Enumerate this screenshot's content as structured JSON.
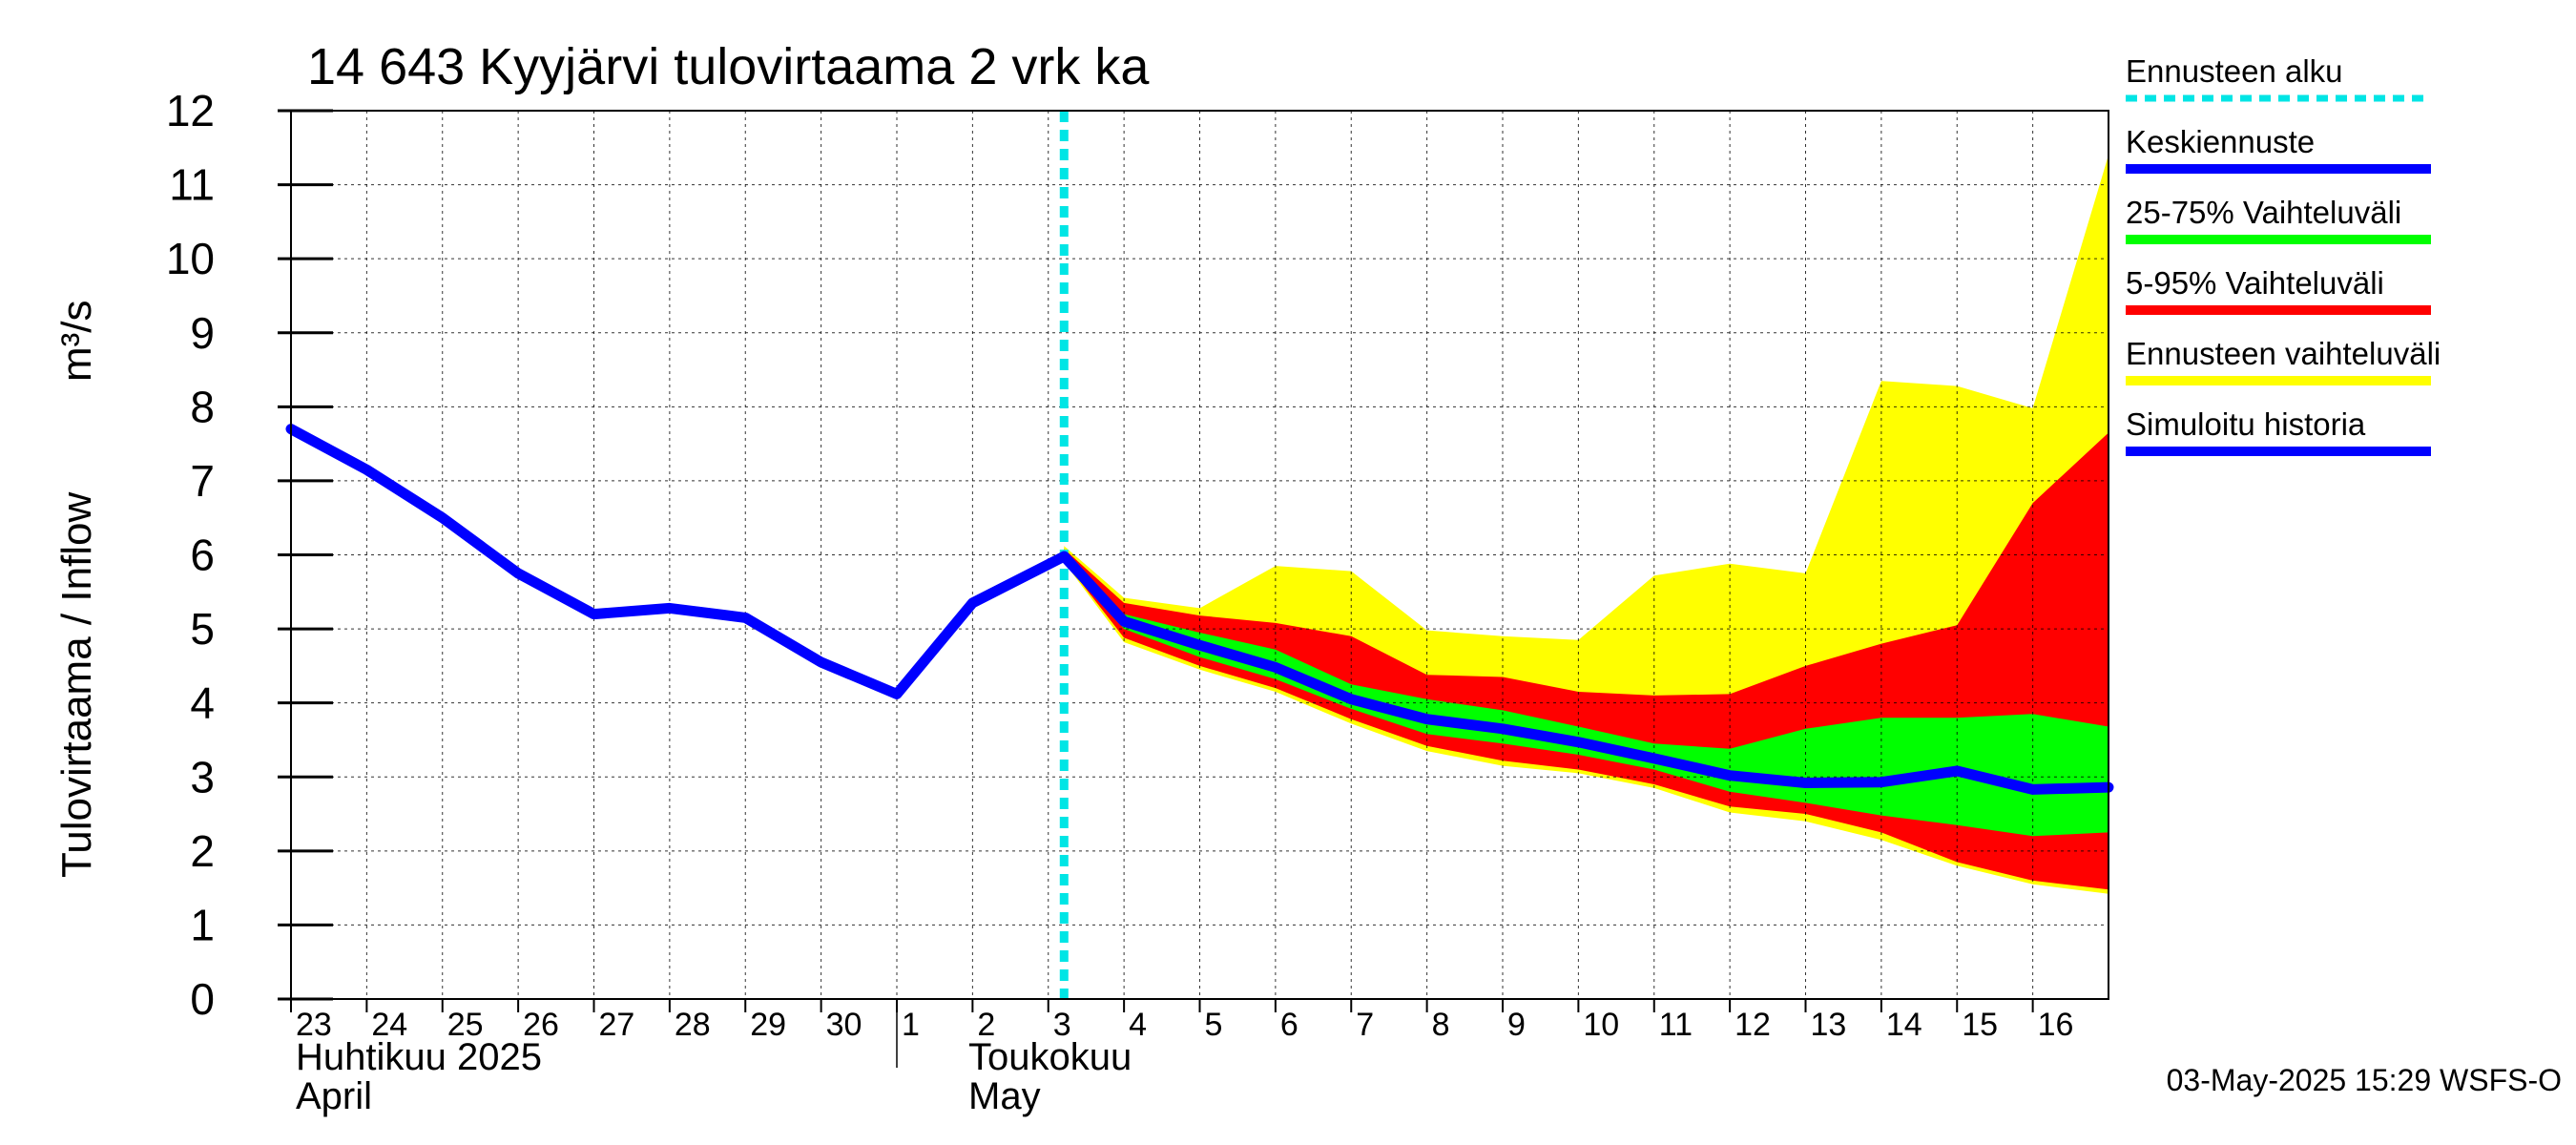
{
  "chart_data": {
    "type": "area",
    "title": "14 643 Kyyjärvi tulovirtaama 2 vrk ka",
    "ylabel": "Tulovirtaama / Inflow",
    "yunit": "m³/s",
    "ylim": [
      0,
      12
    ],
    "yticks": [
      0,
      1,
      2,
      3,
      4,
      5,
      6,
      7,
      8,
      9,
      10,
      11,
      12
    ],
    "grid": true,
    "legend_placement": "right",
    "x_start": "2025-04-23",
    "x_end": "2025-05-17",
    "xtick_labels": [
      "23",
      "24",
      "25",
      "26",
      "27",
      "28",
      "29",
      "30",
      "1",
      "2",
      "3",
      "4",
      "5",
      "6",
      "7",
      "8",
      "9",
      "10",
      "11",
      "12",
      "13",
      "14",
      "15",
      "16"
    ],
    "months": [
      {
        "start": "2025-04-23",
        "fi": "Huhtikuu  2025",
        "en": "April"
      },
      {
        "start": "2025-05-01",
        "fi": "Toukokuu",
        "en": "May"
      }
    ],
    "forecast_start": "2025-05-03T05:00",
    "series": [
      {
        "name": "Simuloitu historia",
        "color": "#0000ff",
        "points": [
          [
            "2025-04-23",
            7.7
          ],
          [
            "2025-04-24",
            7.15
          ],
          [
            "2025-04-25",
            6.5
          ],
          [
            "2025-04-26",
            5.75
          ],
          [
            "2025-04-27",
            5.2
          ],
          [
            "2025-04-28",
            5.28
          ],
          [
            "2025-04-29",
            5.15
          ],
          [
            "2025-04-30",
            4.55
          ],
          [
            "2025-05-01",
            4.12
          ],
          [
            "2025-05-02",
            5.35
          ],
          [
            "2025-05-03T05:00",
            5.98
          ]
        ]
      },
      {
        "name": "Keskiennuste",
        "color": "#0000ff",
        "points": [
          [
            "2025-05-03T05:00",
            5.98
          ],
          [
            "2025-05-04",
            5.1
          ],
          [
            "2025-05-05",
            4.78
          ],
          [
            "2025-05-06",
            4.48
          ],
          [
            "2025-05-07",
            4.05
          ],
          [
            "2025-05-08",
            3.78
          ],
          [
            "2025-05-09",
            3.65
          ],
          [
            "2025-05-10",
            3.47
          ],
          [
            "2025-05-11",
            3.25
          ],
          [
            "2025-05-12",
            3.02
          ],
          [
            "2025-05-13",
            2.92
          ],
          [
            "2025-05-14",
            2.93
          ],
          [
            "2025-05-15",
            3.08
          ],
          [
            "2025-05-16",
            2.83
          ],
          [
            "2025-05-17",
            2.86
          ]
        ]
      },
      {
        "name": "Ennusteen vaihteluväli",
        "color": "#ffff00",
        "x": [
          "2025-05-03T05:00",
          "2025-05-04",
          "2025-05-05",
          "2025-05-06",
          "2025-05-07",
          "2025-05-08",
          "2025-05-09",
          "2025-05-10",
          "2025-05-11",
          "2025-05-12",
          "2025-05-13",
          "2025-05-14",
          "2025-05-15",
          "2025-05-16",
          "2025-05-17"
        ],
        "upper": [
          6.12,
          5.42,
          5.28,
          5.85,
          5.78,
          4.98,
          4.9,
          4.85,
          5.72,
          5.88,
          5.75,
          8.35,
          8.28,
          7.98,
          11.4
        ],
        "lower": [
          5.9,
          4.82,
          4.45,
          4.15,
          3.72,
          3.35,
          3.15,
          3.05,
          2.85,
          2.52,
          2.4,
          2.15,
          1.8,
          1.55,
          1.42
        ]
      },
      {
        "name": "5-95% Vaihteluväli",
        "color": "#ff0000",
        "x": [
          "2025-05-03T05:00",
          "2025-05-04",
          "2025-05-05",
          "2025-05-06",
          "2025-05-07",
          "2025-05-08",
          "2025-05-09",
          "2025-05-10",
          "2025-05-11",
          "2025-05-12",
          "2025-05-13",
          "2025-05-14",
          "2025-05-15",
          "2025-05-16",
          "2025-05-17"
        ],
        "upper": [
          6.08,
          5.35,
          5.18,
          5.08,
          4.9,
          4.38,
          4.35,
          4.15,
          4.1,
          4.12,
          4.5,
          4.8,
          5.05,
          6.7,
          7.65
        ],
        "lower": [
          5.92,
          4.88,
          4.5,
          4.2,
          3.78,
          3.42,
          3.22,
          3.1,
          2.9,
          2.6,
          2.5,
          2.25,
          1.85,
          1.6,
          1.48
        ]
      },
      {
        "name": "25-75% Vaihteluväli",
        "color": "#00ff00",
        "x": [
          "2025-05-03T05:00",
          "2025-05-04",
          "2025-05-05",
          "2025-05-06",
          "2025-05-07",
          "2025-05-08",
          "2025-05-09",
          "2025-05-10",
          "2025-05-11",
          "2025-05-12",
          "2025-05-13",
          "2025-05-14",
          "2025-05-15",
          "2025-05-16",
          "2025-05-17"
        ],
        "upper": [
          6.02,
          5.2,
          4.95,
          4.72,
          4.25,
          4.05,
          3.9,
          3.68,
          3.45,
          3.38,
          3.65,
          3.8,
          3.8,
          3.85,
          3.68
        ],
        "lower": [
          5.95,
          5.0,
          4.62,
          4.32,
          3.92,
          3.58,
          3.45,
          3.3,
          3.1,
          2.8,
          2.65,
          2.48,
          2.35,
          2.2,
          2.25
        ]
      }
    ],
    "legend": [
      {
        "label": "Ennusteen alku",
        "color": "#00e5e5",
        "style": "dotted"
      },
      {
        "label": "Keskiennuste",
        "color": "#0000ff",
        "style": "solid"
      },
      {
        "label": "25-75% Vaihteluväli",
        "color": "#00ff00",
        "style": "solid"
      },
      {
        "label": "5-95% Vaihteluväli",
        "color": "#ff0000",
        "style": "solid"
      },
      {
        "label": "Ennusteen vaihteluväli",
        "color": "#ffff00",
        "style": "solid"
      },
      {
        "label": "Simuloitu historia",
        "color": "#0000ff",
        "style": "solid"
      }
    ],
    "timestamp": "03-May-2025 15:29 WSFS-O"
  }
}
